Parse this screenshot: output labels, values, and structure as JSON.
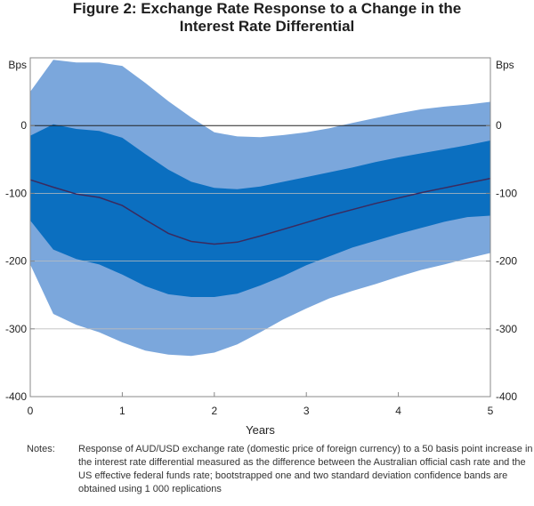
{
  "figure": {
    "title_line1": "Figure 2: Exchange Rate Response to a Change in the",
    "title_line2": "Interest Rate Differential"
  },
  "notes": {
    "label": "Notes:",
    "text": "Response of AUD/USD exchange rate (domestic price of foreign currency) to a 50 basis point increase in the interest rate differential measured as the difference between the Australian official cash rate and the US effective federal funds rate; bootstrapped one and two standard deviation confidence bands are obtained using 1 000 replications"
  },
  "colors": {
    "outer_band": "#7ba7dc",
    "inner_band": "#0b6fc0",
    "line": "#3b2a5e",
    "frame": "#888888"
  },
  "chart_data": {
    "type": "area",
    "xlabel": "Years",
    "ylabel_left": "Bps",
    "ylabel_right": "Bps",
    "xlim": [
      0,
      5
    ],
    "ylim": [
      -400,
      100
    ],
    "x_ticks": [
      0,
      1,
      2,
      3,
      4,
      5
    ],
    "y_ticks": [
      0,
      -100,
      -200,
      -300,
      -400
    ],
    "x": [
      0,
      0.25,
      0.5,
      0.75,
      1,
      1.25,
      1.5,
      1.75,
      2,
      2.25,
      2.5,
      2.75,
      3,
      3.25,
      3.5,
      3.75,
      4,
      4.25,
      4.5,
      4.75,
      5
    ],
    "series": [
      {
        "name": "Point estimate",
        "values": [
          -80,
          -91,
          -101,
          -106,
          -118,
          -139,
          -159,
          -171,
          -175,
          -172,
          -163,
          -153,
          -143,
          -133,
          -124,
          -115,
          -107,
          -99,
          -92,
          -85,
          -78
        ]
      },
      {
        "name": "Upper 1 s.d.",
        "values": [
          -15,
          2,
          -5,
          -8,
          -18,
          -42,
          -65,
          -83,
          -92,
          -94,
          -90,
          -83,
          -76,
          -69,
          -62,
          -54,
          -47,
          -41,
          -35,
          -29,
          -22
        ]
      },
      {
        "name": "Lower 1 s.d.",
        "values": [
          -140,
          -183,
          -197,
          -205,
          -220,
          -237,
          -249,
          -253,
          -253,
          -248,
          -236,
          -222,
          -206,
          -193,
          -180,
          -170,
          -160,
          -151,
          -142,
          -135,
          -133
        ]
      },
      {
        "name": "Upper 2 s.d.",
        "values": [
          50,
          97,
          93,
          93,
          88,
          63,
          36,
          12,
          -10,
          -16,
          -17,
          -14,
          -10,
          -4,
          4,
          11,
          18,
          24,
          28,
          31,
          35
        ]
      },
      {
        "name": "Lower 2 s.d.",
        "values": [
          -205,
          -278,
          -294,
          -305,
          -320,
          -332,
          -338,
          -340,
          -335,
          -323,
          -305,
          -286,
          -270,
          -255,
          -244,
          -234,
          -223,
          -213,
          -205,
          -196,
          -188
        ]
      }
    ]
  }
}
